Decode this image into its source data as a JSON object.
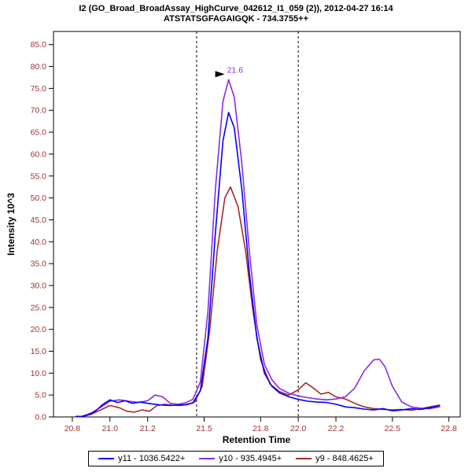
{
  "title": {
    "line1": "I2 (GO_Broad_BroadAssay_HighCurve_042612_I1_059 (2)), 2012-04-27 16:14",
    "line2": "ATSTATSGFAGAIGQK - 734.3755++"
  },
  "colors": {
    "axis_ticks": "#993333",
    "axis_line": "#000000",
    "boundary_line": "#000000",
    "annotation_text": "#8a2be2",
    "annotation_arrow": "#000000"
  },
  "chart_data": {
    "type": "line",
    "title": "I2 (GO_Broad_BroadAssay_HighCurve_042612_I1_059 (2)), 2012-04-27 16:14 / ATSTATSGFAGAIGQK - 734.3755++",
    "xlabel": "Retention Time",
    "ylabel": "Intensity 10^3",
    "xlim": [
      20.7,
      22.86
    ],
    "ylim": [
      0,
      88
    ],
    "x_ticks": [
      20.8,
      21.0,
      21.2,
      21.5,
      21.8,
      22.0,
      22.2,
      22.5,
      22.8
    ],
    "x_tick_labels": [
      "20.8",
      "21.0",
      "21.2",
      "21.5",
      "21.8",
      "22.0",
      "22.2",
      "22.5",
      "22.8"
    ],
    "y_ticks": [
      0,
      5,
      10,
      15,
      20,
      25,
      30,
      35,
      40,
      45,
      50,
      55,
      60,
      65,
      70,
      75,
      80,
      85
    ],
    "y_tick_labels": [
      "0.0",
      "5.0",
      "10.0",
      "15.0",
      "20.0",
      "25.0",
      "30.0",
      "35.0",
      "40.0",
      "45.0",
      "50.0",
      "55.0",
      "60.0",
      "65.0",
      "70.0",
      "75.0",
      "80.0",
      "85.0"
    ],
    "grid": false,
    "legend_position": "bottom",
    "peak_boundaries": [
      21.46,
      22.0
    ],
    "annotation": {
      "text": "21.6",
      "x": 21.63,
      "y": 77,
      "color": "#8a2be2"
    },
    "series": [
      {
        "name": "y11 - 1036.5422+",
        "color": "#0000ff",
        "points": [
          [
            20.82,
            0.1
          ],
          [
            20.85,
            0.1
          ],
          [
            20.88,
            0.4
          ],
          [
            20.92,
            1.2
          ],
          [
            20.96,
            2.8
          ],
          [
            21.0,
            3.9
          ],
          [
            21.04,
            3.3
          ],
          [
            21.08,
            3.7
          ],
          [
            21.12,
            3.1
          ],
          [
            21.16,
            3.4
          ],
          [
            21.2,
            3.1
          ],
          [
            21.24,
            2.9
          ],
          [
            21.28,
            2.7
          ],
          [
            21.32,
            2.6
          ],
          [
            21.36,
            2.7
          ],
          [
            21.4,
            2.8
          ],
          [
            21.44,
            3.2
          ],
          [
            21.48,
            6.0
          ],
          [
            21.52,
            18
          ],
          [
            21.56,
            42
          ],
          [
            21.6,
            63
          ],
          [
            21.63,
            69.5
          ],
          [
            21.66,
            66
          ],
          [
            21.7,
            52
          ],
          [
            21.74,
            33
          ],
          [
            21.78,
            18
          ],
          [
            21.82,
            10
          ],
          [
            21.86,
            7
          ],
          [
            21.9,
            5.5
          ],
          [
            21.95,
            4.6
          ],
          [
            22.0,
            4.0
          ],
          [
            22.05,
            3.6
          ],
          [
            22.1,
            3.4
          ],
          [
            22.15,
            3.3
          ],
          [
            22.2,
            2.9
          ],
          [
            22.25,
            2.3
          ],
          [
            22.3,
            2.1
          ],
          [
            22.35,
            1.8
          ],
          [
            22.4,
            1.6
          ],
          [
            22.45,
            1.9
          ],
          [
            22.5,
            1.4
          ],
          [
            22.55,
            1.6
          ],
          [
            22.6,
            1.9
          ],
          [
            22.65,
            1.7
          ],
          [
            22.7,
            2.1
          ],
          [
            22.75,
            2.6
          ]
        ]
      },
      {
        "name": "y10 - 935.4945+",
        "color": "#8a2be2",
        "points": [
          [
            20.82,
            0.1
          ],
          [
            20.85,
            0.1
          ],
          [
            20.9,
            0.9
          ],
          [
            20.95,
            2.2
          ],
          [
            21.0,
            3.6
          ],
          [
            21.05,
            3.9
          ],
          [
            21.1,
            3.6
          ],
          [
            21.15,
            3.3
          ],
          [
            21.2,
            3.7
          ],
          [
            21.24,
            5.0
          ],
          [
            21.28,
            4.6
          ],
          [
            21.32,
            3.1
          ],
          [
            21.36,
            2.9
          ],
          [
            21.4,
            3.2
          ],
          [
            21.44,
            4.0
          ],
          [
            21.48,
            8.0
          ],
          [
            21.52,
            24
          ],
          [
            21.56,
            52
          ],
          [
            21.6,
            72
          ],
          [
            21.63,
            77
          ],
          [
            21.66,
            73
          ],
          [
            21.7,
            58
          ],
          [
            21.74,
            38
          ],
          [
            21.78,
            21
          ],
          [
            21.82,
            12
          ],
          [
            21.86,
            8.5
          ],
          [
            21.9,
            6.5
          ],
          [
            21.95,
            5.4
          ],
          [
            22.0,
            4.8
          ],
          [
            22.05,
            4.4
          ],
          [
            22.1,
            4.1
          ],
          [
            22.15,
            3.9
          ],
          [
            22.2,
            4.1
          ],
          [
            22.25,
            4.6
          ],
          [
            22.3,
            6.6
          ],
          [
            22.35,
            10.5
          ],
          [
            22.4,
            13.0
          ],
          [
            22.43,
            13.2
          ],
          [
            22.46,
            11.5
          ],
          [
            22.5,
            7.0
          ],
          [
            22.55,
            3.4
          ],
          [
            22.6,
            2.3
          ],
          [
            22.65,
            2.0
          ],
          [
            22.7,
            1.9
          ],
          [
            22.75,
            2.3
          ]
        ]
      },
      {
        "name": "y9 - 848.4625+",
        "color": "#a52a2a",
        "points": [
          [
            20.82,
            0.1
          ],
          [
            20.85,
            0.1
          ],
          [
            20.9,
            0.6
          ],
          [
            20.95,
            1.6
          ],
          [
            21.0,
            2.6
          ],
          [
            21.05,
            2.1
          ],
          [
            21.09,
            1.3
          ],
          [
            21.13,
            1.1
          ],
          [
            21.17,
            1.6
          ],
          [
            21.21,
            1.3
          ],
          [
            21.25,
            2.6
          ],
          [
            21.29,
            2.9
          ],
          [
            21.33,
            2.7
          ],
          [
            21.37,
            2.6
          ],
          [
            21.41,
            2.8
          ],
          [
            21.45,
            3.4
          ],
          [
            21.49,
            7.0
          ],
          [
            21.53,
            20
          ],
          [
            21.57,
            38
          ],
          [
            21.61,
            50
          ],
          [
            21.64,
            52.5
          ],
          [
            21.68,
            48
          ],
          [
            21.72,
            38
          ],
          [
            21.76,
            24
          ],
          [
            21.8,
            13
          ],
          [
            21.85,
            7.5
          ],
          [
            21.9,
            5.8
          ],
          [
            21.95,
            5.0
          ],
          [
            22.0,
            6.2
          ],
          [
            22.04,
            7.8
          ],
          [
            22.08,
            6.6
          ],
          [
            22.12,
            5.2
          ],
          [
            22.16,
            5.6
          ],
          [
            22.2,
            4.6
          ],
          [
            22.25,
            4.1
          ],
          [
            22.3,
            3.1
          ],
          [
            22.35,
            2.3
          ],
          [
            22.4,
            1.9
          ],
          [
            22.45,
            1.7
          ],
          [
            22.5,
            1.6
          ],
          [
            22.55,
            1.7
          ],
          [
            22.6,
            1.5
          ],
          [
            22.65,
            1.9
          ],
          [
            22.7,
            2.3
          ],
          [
            22.75,
            2.7
          ]
        ]
      }
    ]
  },
  "legend": {
    "items": [
      "y11 - 1036.5422+",
      "y10 - 935.4945+",
      "y9 - 848.4625+"
    ]
  }
}
